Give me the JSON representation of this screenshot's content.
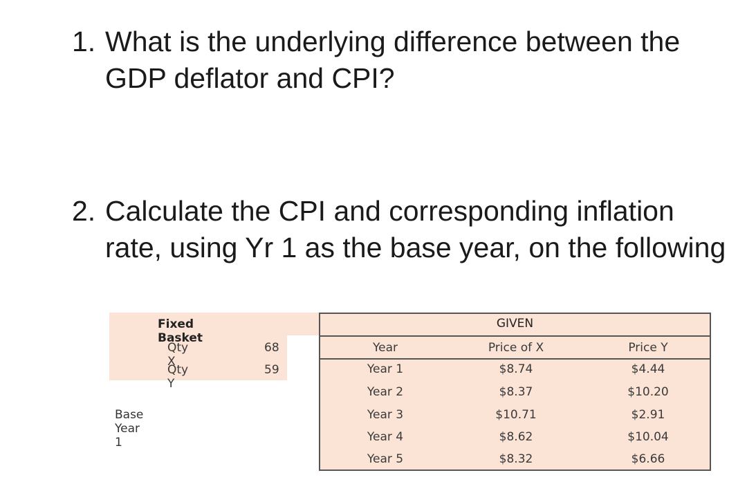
{
  "questions": [
    {
      "number": "1.",
      "text": "What is the underlying difference between the GDP deflator and CPI?"
    },
    {
      "number": "2.",
      "text": "Calculate the CPI and corresponding inflation rate, using Yr 1 as the base year, on the following"
    }
  ],
  "fixed_basket": {
    "title": "Fixed Basket",
    "rows": [
      {
        "label": "Qty X",
        "value": "68"
      },
      {
        "label": "Qty Y",
        "value": "59"
      }
    ]
  },
  "base_year_label": "Base Year 1",
  "given_table": {
    "title": "GIVEN",
    "headers": [
      "Year",
      "Price of X",
      "Price Y"
    ],
    "rows": [
      [
        "Year 1",
        "$8.74",
        "$4.44"
      ],
      [
        "Year 2",
        "$8.37",
        "$10.20"
      ],
      [
        "Year 3",
        "$10.71",
        "$2.91"
      ],
      [
        "Year 4",
        "$8.62",
        "$10.04"
      ],
      [
        "Year 5",
        "$8.32",
        "$6.66"
      ]
    ]
  },
  "colors": {
    "cell_fill": "#fbe3d6",
    "border": "#555555"
  }
}
